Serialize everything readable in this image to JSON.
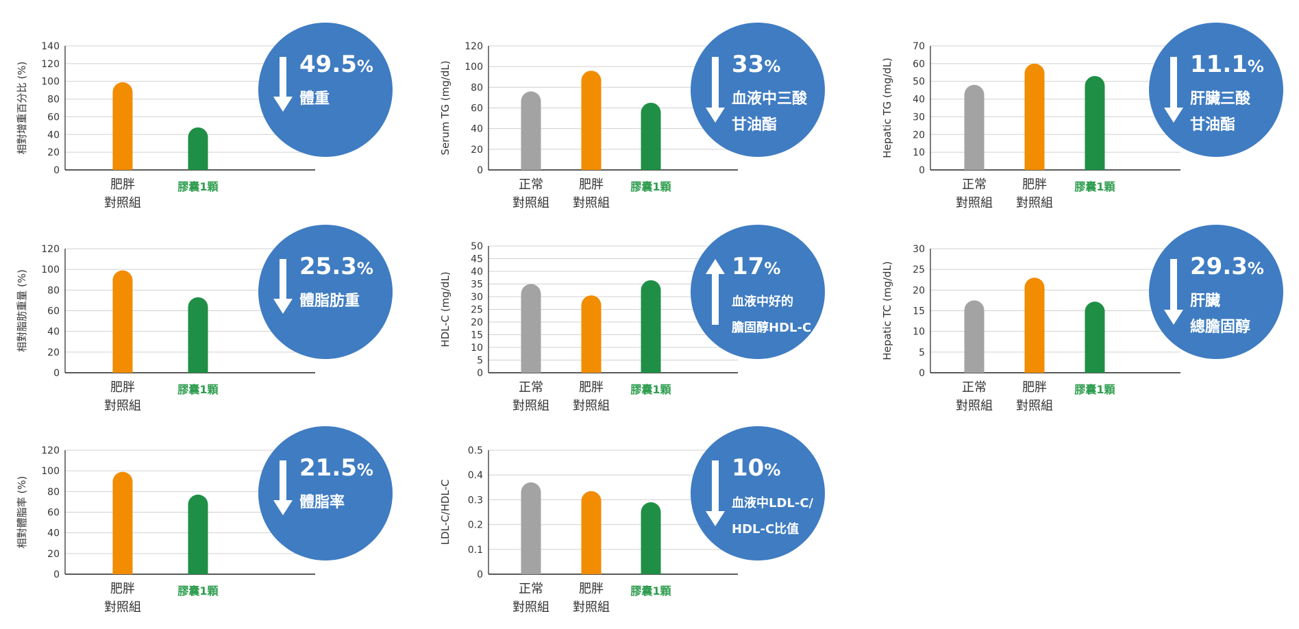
{
  "colors": {
    "normal": "#a3a3a3",
    "obese": "#f28c00",
    "capsule": "#1e8f45",
    "capsule_label": "#2e9d4f",
    "badge": "#3f7cc2",
    "grid": "#d0d0d0",
    "axis": "#222222",
    "text": "#333333"
  },
  "chart_data": [
    {
      "type": "bar",
      "ylabel": "相對增重百分比 (%)",
      "ylim": [
        0,
        140
      ],
      "yticks": [
        0,
        20,
        40,
        60,
        80,
        100,
        120,
        140
      ],
      "categories": [
        {
          "line1": "肥胖",
          "line2": "對照組",
          "group": "obese"
        },
        {
          "line1": "膠囊1顆",
          "line2": "",
          "group": "capsule"
        }
      ],
      "values": [
        99,
        48
      ],
      "badge": {
        "direction": "down",
        "value": "49.5",
        "unit": "%",
        "lines": [
          "體重"
        ]
      }
    },
    {
      "type": "bar",
      "ylabel": "Serum TG (mg/dL)",
      "ylim": [
        0,
        120
      ],
      "yticks": [
        0,
        20,
        40,
        60,
        80,
        100,
        120
      ],
      "categories": [
        {
          "line1": "正常",
          "line2": "對照組",
          "group": "normal"
        },
        {
          "line1": "肥胖",
          "line2": "對照組",
          "group": "obese"
        },
        {
          "line1": "膠囊1顆",
          "line2": "",
          "group": "capsule"
        }
      ],
      "values": [
        76,
        96,
        65
      ],
      "badge": {
        "direction": "down",
        "value": "33",
        "unit": "%",
        "lines": [
          "血液中三酸",
          "甘油酯"
        ]
      }
    },
    {
      "type": "bar",
      "ylabel": "Hepatic TG (mg/dL)",
      "ylim": [
        0,
        70
      ],
      "yticks": [
        0,
        10,
        20,
        30,
        40,
        50,
        60,
        70
      ],
      "categories": [
        {
          "line1": "正常",
          "line2": "對照組",
          "group": "normal"
        },
        {
          "line1": "肥胖",
          "line2": "對照組",
          "group": "obese"
        },
        {
          "line1": "膠囊1顆",
          "line2": "",
          "group": "capsule"
        }
      ],
      "values": [
        48,
        60,
        53
      ],
      "badge": {
        "direction": "down",
        "value": "11.1",
        "unit": "%",
        "lines": [
          "肝臟三酸",
          "甘油酯"
        ]
      }
    },
    {
      "type": "bar",
      "ylabel": "相對脂肪重量 (%)",
      "ylim": [
        0,
        120
      ],
      "yticks": [
        0,
        20,
        40,
        60,
        80,
        100,
        120
      ],
      "categories": [
        {
          "line1": "肥胖",
          "line2": "對照組",
          "group": "obese"
        },
        {
          "line1": "膠囊1顆",
          "line2": "",
          "group": "capsule"
        }
      ],
      "values": [
        99,
        73
      ],
      "badge": {
        "direction": "down",
        "value": "25.3",
        "unit": "%",
        "lines": [
          "體脂肪重"
        ]
      }
    },
    {
      "type": "bar",
      "ylabel": "HDL-C (mg/dL)",
      "ylim": [
        0,
        50
      ],
      "yticks": [
        0,
        5,
        10,
        15,
        20,
        25,
        30,
        35,
        40,
        45,
        50
      ],
      "categories": [
        {
          "line1": "正常",
          "line2": "對照組",
          "group": "normal"
        },
        {
          "line1": "肥胖",
          "line2": "對照組",
          "group": "obese"
        },
        {
          "line1": "膠囊1顆",
          "line2": "",
          "group": "capsule"
        }
      ],
      "values": [
        35,
        30.5,
        36.5
      ],
      "badge": {
        "direction": "up",
        "value": "17",
        "unit": "%",
        "lines": [
          "血液中好的",
          "膽固醇HDL-C"
        ]
      }
    },
    {
      "type": "bar",
      "ylabel": "Hepatic TC (mg/dL)",
      "ylim": [
        0,
        30
      ],
      "yticks": [
        0,
        5,
        10,
        15,
        20,
        25,
        30
      ],
      "categories": [
        {
          "line1": "正常",
          "line2": "對照組",
          "group": "normal"
        },
        {
          "line1": "肥胖",
          "line2": "對照組",
          "group": "obese"
        },
        {
          "line1": "膠囊1顆",
          "line2": "",
          "group": "capsule"
        }
      ],
      "values": [
        17.5,
        23,
        17.2
      ],
      "badge": {
        "direction": "down",
        "value": "29.3",
        "unit": "%",
        "lines": [
          "肝臟",
          "總膽固醇"
        ]
      }
    },
    {
      "type": "bar",
      "ylabel": "相對體脂率 (%)",
      "ylim": [
        0,
        120
      ],
      "yticks": [
        0,
        20,
        40,
        60,
        80,
        100,
        120
      ],
      "categories": [
        {
          "line1": "肥胖",
          "line2": "對照組",
          "group": "obese"
        },
        {
          "line1": "膠囊1顆",
          "line2": "",
          "group": "capsule"
        }
      ],
      "values": [
        99,
        77
      ],
      "badge": {
        "direction": "down",
        "value": "21.5",
        "unit": "%",
        "lines": [
          "體脂率"
        ]
      }
    },
    {
      "type": "bar",
      "ylabel": "LDL-C/HDL-C",
      "ylim": [
        0,
        0.5
      ],
      "yticks": [
        "0",
        "0.1",
        "0.2",
        "0.3",
        "0.4",
        "0.5"
      ],
      "categories": [
        {
          "line1": "正常",
          "line2": "對照組",
          "group": "normal"
        },
        {
          "line1": "肥胖",
          "line2": "對照組",
          "group": "obese"
        },
        {
          "line1": "膠囊1顆",
          "line2": "",
          "group": "capsule"
        }
      ],
      "values": [
        0.37,
        0.335,
        0.29
      ],
      "badge": {
        "direction": "down",
        "value": "10",
        "unit": "%",
        "lines": [
          "血液中LDL-C/",
          "HDL-C比值"
        ]
      }
    }
  ]
}
